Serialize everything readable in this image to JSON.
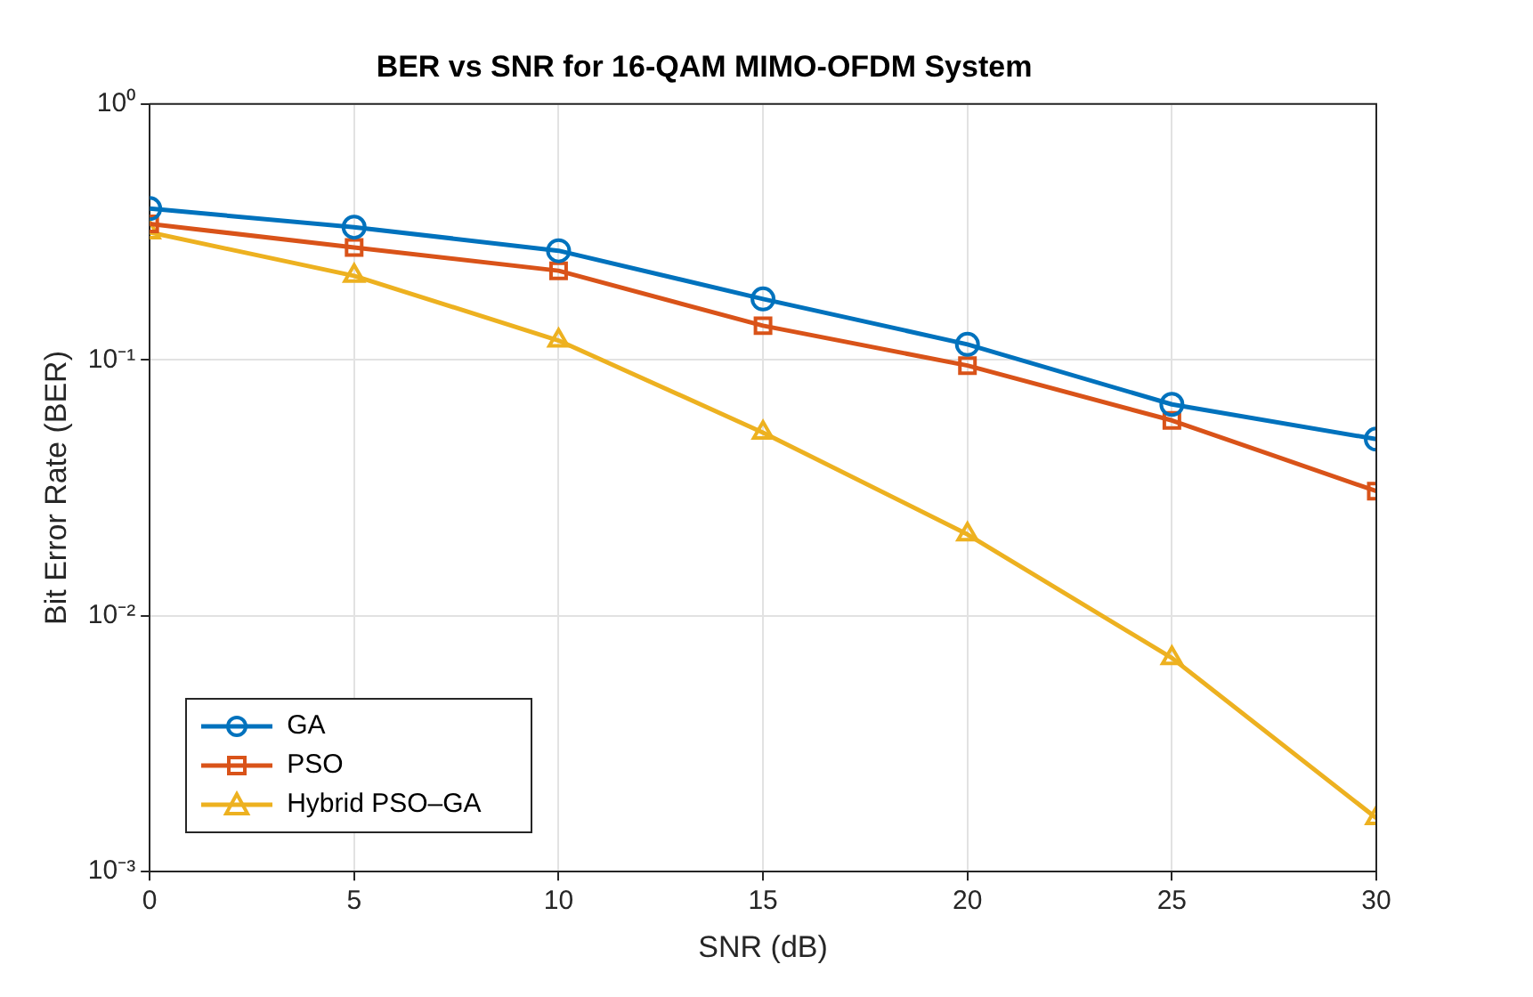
{
  "chart_data": {
    "type": "line",
    "title": "BER vs SNR for 16-QAM MIMO-OFDM System",
    "xlabel": "SNR (dB)",
    "ylabel": "Bit Error Rate (BER)",
    "x": [
      0,
      5,
      10,
      15,
      20,
      25,
      30
    ],
    "series": [
      {
        "name": "GA",
        "color": "#0072bd",
        "marker": "circle",
        "values": [
          0.39,
          0.33,
          0.267,
          0.173,
          0.115,
          0.067,
          0.049
        ]
      },
      {
        "name": "PSO",
        "color": "#d95319",
        "marker": "square",
        "values": [
          0.34,
          0.275,
          0.223,
          0.136,
          0.095,
          0.058,
          0.0307
        ]
      },
      {
        "name": "Hybrid PSO–GA",
        "color": "#edb120",
        "marker": "triangle",
        "values": [
          0.315,
          0.213,
          0.119,
          0.052,
          0.0208,
          0.00684,
          0.00162
        ]
      }
    ],
    "xlim": [
      0,
      30
    ],
    "xticks": [
      0,
      5,
      10,
      15,
      20,
      25,
      30
    ],
    "ylim": [
      0.001,
      1
    ],
    "yticks": [
      {
        "value": 0.001,
        "label": "10⁻³"
      },
      {
        "value": 0.01,
        "label": "10⁻²"
      },
      {
        "value": 0.1,
        "label": "10⁻¹"
      },
      {
        "value": 1,
        "label": "10⁰"
      }
    ],
    "log": "y",
    "grid": true,
    "legend": "bottom left",
    "line_style": "solid"
  }
}
